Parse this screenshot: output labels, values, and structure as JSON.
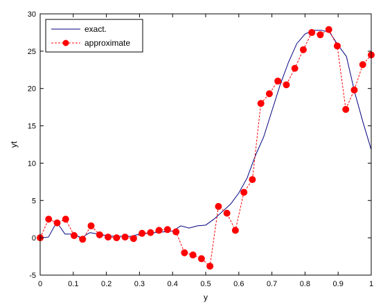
{
  "chart_data": {
    "type": "line",
    "xlabel": "y",
    "ylabel": "yt",
    "xlim": [
      0,
      1
    ],
    "ylim": [
      -5,
      30
    ],
    "xticks": [
      "0",
      "0.1",
      "0.2",
      "0.3",
      "0.4",
      "0.5",
      "0.6",
      "0.7",
      "0.8",
      "0.9",
      "1"
    ],
    "yticks": [
      "-5",
      "0",
      "5",
      "10",
      "15",
      "20",
      "25",
      "30"
    ],
    "grid": false,
    "legend_position": "top-left",
    "series": [
      {
        "name": "exact.",
        "color": "#00007f",
        "style": "solid",
        "x": [
          0,
          0.025,
          0.05,
          0.075,
          0.1,
          0.125,
          0.15,
          0.175,
          0.2,
          0.225,
          0.25,
          0.275,
          0.3,
          0.325,
          0.35,
          0.375,
          0.4,
          0.425,
          0.45,
          0.475,
          0.5,
          0.525,
          0.55,
          0.575,
          0.6,
          0.625,
          0.65,
          0.675,
          0.7,
          0.725,
          0.75,
          0.775,
          0.8,
          0.825,
          0.85,
          0.875,
          0.9,
          0.925,
          0.95,
          0.975,
          1
        ],
        "y": [
          0,
          0.1,
          2.1,
          0.5,
          0.5,
          0,
          0.7,
          0.5,
          0.3,
          0.2,
          0.2,
          0.2,
          0.5,
          0.6,
          0.7,
          0.8,
          0.9,
          1.6,
          1.3,
          1.6,
          1.7,
          2.5,
          3.5,
          4.5,
          6.0,
          8.0,
          11.0,
          13.5,
          17.0,
          20.5,
          23.5,
          26.0,
          27.3,
          27.8,
          27.8,
          27.5,
          25.8,
          24.3,
          19.5,
          15.5,
          11.8
        ]
      },
      {
        "name": "approximate",
        "color": "#ff0000",
        "marker_color": "#ff0000",
        "style": "dashed",
        "x": [
          0,
          0.0256,
          0.0513,
          0.0769,
          0.1026,
          0.1282,
          0.1538,
          0.1795,
          0.2051,
          0.2308,
          0.2564,
          0.2821,
          0.3077,
          0.3333,
          0.359,
          0.3846,
          0.4103,
          0.4359,
          0.4615,
          0.4872,
          0.5128,
          0.5385,
          0.5641,
          0.5897,
          0.6154,
          0.641,
          0.6667,
          0.6923,
          0.7179,
          0.7436,
          0.7692,
          0.7949,
          0.8205,
          0.8462,
          0.8718,
          0.8974,
          0.9231,
          0.9487,
          0.9744,
          1
        ],
        "y": [
          0,
          2.5,
          2.0,
          2.5,
          0.3,
          -0.2,
          1.6,
          0.4,
          0.1,
          0.0,
          0.1,
          -0.1,
          0.6,
          0.7,
          1.0,
          1.1,
          0.8,
          -2.0,
          -2.3,
          -2.8,
          -3.8,
          4.2,
          3.3,
          1.0,
          6.1,
          7.8,
          18.0,
          19.3,
          21.0,
          20.5,
          22.7,
          25.2,
          27.5,
          27.2,
          27.9,
          25.7,
          17.2,
          19.8,
          23.2,
          24.5
        ]
      }
    ]
  }
}
